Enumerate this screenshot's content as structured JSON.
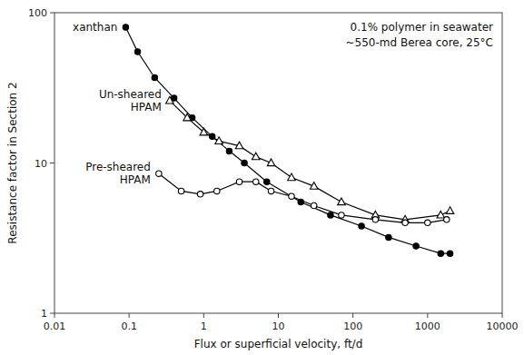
{
  "chart_data": {
    "type": "line",
    "log": true,
    "xlabel": "Flux or superficial velocity, ft/d",
    "ylabel": "Resistance factor in Section 2",
    "annotation": "0.1% polymer in seawater\n~550-md Berea core, 25°C",
    "xlim": [
      0.01,
      10000
    ],
    "ylim": [
      1,
      100
    ],
    "xticks": [
      0.01,
      0.1,
      1,
      10,
      100,
      1000,
      10000
    ],
    "yticks": [
      1,
      10,
      100
    ],
    "grid": false,
    "series": [
      {
        "name": "xanthan",
        "color": "#000000",
        "marker": "circle",
        "x": [
          0.09,
          0.13,
          0.22,
          0.4,
          0.7,
          1.3,
          2.2,
          3.5,
          7,
          20,
          50,
          130,
          300,
          700,
          1500,
          2000
        ],
        "values": [
          80,
          55,
          37,
          27,
          20,
          15,
          12,
          10,
          7.5,
          5.5,
          4.5,
          3.8,
          3.2,
          2.8,
          2.5,
          2.5
        ]
      },
      {
        "name": "Un-sheared\nHPAM",
        "color": "#000000",
        "marker": "triangle-open",
        "x": [
          0.35,
          0.6,
          1.0,
          1.6,
          3.0,
          5.0,
          8.0,
          15,
          30,
          70,
          200,
          500,
          1500,
          2000
        ],
        "values": [
          26,
          20,
          16,
          14,
          13,
          11,
          10,
          8,
          7,
          5.5,
          4.5,
          4.2,
          4.5,
          4.8
        ]
      },
      {
        "name": "Pre-sheared\nHPAM",
        "color": "#000000",
        "marker": "circle-open",
        "x": [
          0.25,
          0.5,
          0.9,
          1.5,
          3.0,
          5.0,
          8.0,
          15,
          30,
          70,
          200,
          500,
          1000,
          1800
        ],
        "values": [
          8.5,
          6.5,
          6.2,
          6.5,
          7.5,
          7.5,
          6.5,
          6.0,
          5.2,
          4.5,
          4.2,
          4.0,
          4.0,
          4.2
        ]
      }
    ]
  }
}
